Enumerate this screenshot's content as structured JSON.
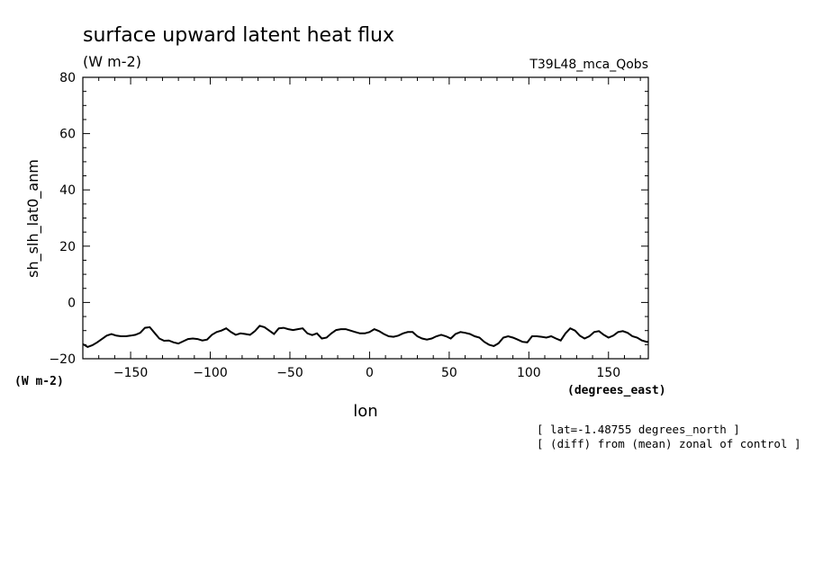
{
  "chart_data": {
    "type": "line",
    "title": "surface upward latent heat flux",
    "title_units": "(W m-2)",
    "run_label": "T39L48_mca_Qobs",
    "ylabel": "sh_slh_lat0_anm",
    "ylabel_units": "(W m-2)",
    "xlabel": "lon",
    "xlabel_units": "(degrees_east)",
    "notes": [
      "[ lat=-1.48755 degrees_north ]",
      "[ (diff) from (mean) zonal of control ]"
    ],
    "xlim": [
      -180,
      175
    ],
    "ylim": [
      -20,
      80
    ],
    "x_ticks": [
      -150,
      -100,
      -50,
      0,
      50,
      100,
      150
    ],
    "y_ticks": [
      -20,
      0,
      20,
      40,
      60,
      80
    ],
    "grid": false,
    "series": [
      {
        "x": [
          -180,
          -177,
          -174,
          -171,
          -168,
          -165,
          -162,
          -159,
          -156,
          -153,
          -150,
          -147,
          -144,
          -141,
          -138,
          -135,
          -132,
          -129,
          -126,
          -123,
          -120,
          -117,
          -114,
          -111,
          -108,
          -105,
          -102,
          -99,
          -96,
          -93,
          -90,
          -87,
          -84,
          -81,
          -78,
          -75,
          -72,
          -69,
          -66,
          -63,
          -60,
          -57,
          -54,
          -51,
          -48,
          -45,
          -42,
          -39,
          -36,
          -33,
          -30,
          -27,
          -24,
          -21,
          -18,
          -15,
          -12,
          -9,
          -6,
          -3,
          0,
          3,
          6,
          9,
          12,
          15,
          18,
          21,
          24,
          27,
          30,
          33,
          36,
          39,
          42,
          45,
          48,
          51,
          54,
          57,
          60,
          63,
          66,
          69,
          72,
          75,
          78,
          81,
          84,
          87,
          90,
          93,
          96,
          99,
          102,
          105,
          108,
          111,
          114,
          117,
          120,
          123,
          126,
          129,
          132,
          135,
          138,
          141,
          144,
          147,
          150,
          153,
          156,
          159,
          162,
          165,
          168,
          171,
          174,
          175
        ],
        "y": [
          -14.8,
          -15.8,
          -15.2,
          -14.2,
          -13.0,
          -11.8,
          -11.2,
          -11.8,
          -12.0,
          -12.0,
          -11.8,
          -11.5,
          -10.8,
          -9.0,
          -8.8,
          -10.8,
          -12.8,
          -13.6,
          -13.5,
          -14.2,
          -14.6,
          -13.8,
          -13.0,
          -12.8,
          -13.0,
          -13.5,
          -13.2,
          -11.5,
          -10.5,
          -10.0,
          -9.2,
          -10.5,
          -11.5,
          -11.0,
          -11.2,
          -11.5,
          -10.2,
          -8.3,
          -8.8,
          -10.0,
          -11.2,
          -9.2,
          -9.0,
          -9.5,
          -9.8,
          -9.5,
          -9.2,
          -11.0,
          -11.6,
          -11.0,
          -12.8,
          -12.5,
          -11.0,
          -9.8,
          -9.5,
          -9.5,
          -10.0,
          -10.5,
          -11.0,
          -11.0,
          -10.5,
          -9.5,
          -10.2,
          -11.2,
          -12.0,
          -12.2,
          -11.8,
          -11.0,
          -10.5,
          -10.5,
          -12.0,
          -12.8,
          -13.2,
          -12.8,
          -12.0,
          -11.5,
          -12.0,
          -12.8,
          -11.2,
          -10.5,
          -10.8,
          -11.2,
          -12.0,
          -12.5,
          -14.0,
          -15.0,
          -15.5,
          -14.5,
          -12.5,
          -12.0,
          -12.5,
          -13.2,
          -14.0,
          -14.2,
          -12.0,
          -12.0,
          -12.2,
          -12.5,
          -12.0,
          -12.8,
          -13.5,
          -11.0,
          -9.2,
          -10.0,
          -11.8,
          -12.8,
          -12.0,
          -10.5,
          -10.2,
          -11.5,
          -12.5,
          -11.8,
          -10.5,
          -10.2,
          -10.8,
          -12.0,
          -12.5,
          -13.5,
          -14.0,
          -14.0
        ]
      }
    ]
  }
}
